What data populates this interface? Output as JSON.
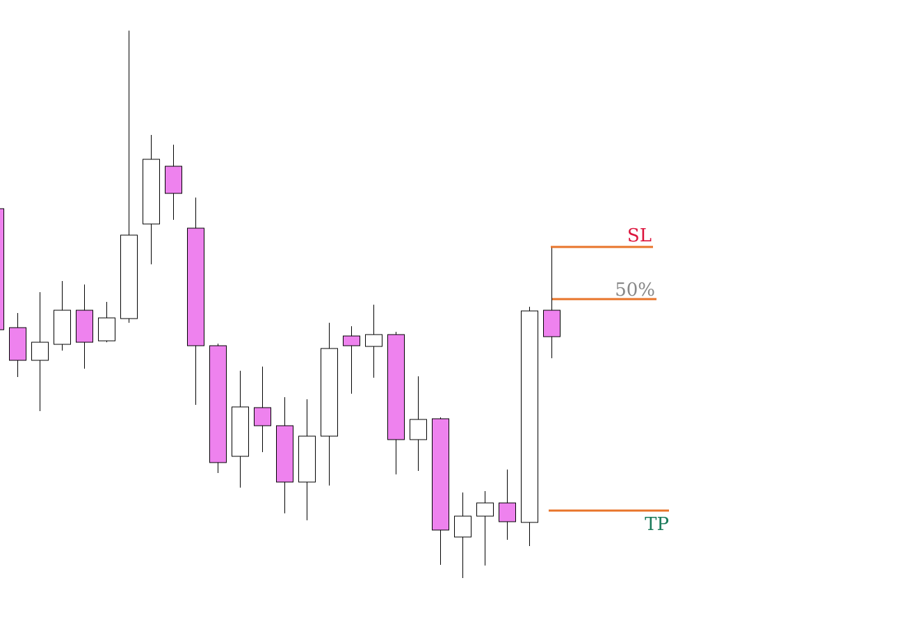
{
  "chart_data": {
    "type": "candlestick",
    "title": "",
    "xlabel": "",
    "ylabel": "",
    "grid": false,
    "ylim": [
      0,
      910
    ],
    "colors": {
      "bullish_body": "#ffffff",
      "bearish_body": "#ee82ee",
      "outline": "#000000",
      "level_line": "#e8742a",
      "sl_label": "#dc143c",
      "mid_label": "#888888",
      "tp_label": "#1a7a5a"
    },
    "candles": [
      {
        "open": 610,
        "high": 612,
        "low": 436,
        "close": 436
      },
      {
        "open": 439,
        "high": 460,
        "low": 368,
        "close": 392
      },
      {
        "open": 392,
        "high": 490,
        "low": 319,
        "close": 418
      },
      {
        "open": 415,
        "high": 506,
        "low": 406,
        "close": 464
      },
      {
        "open": 464,
        "high": 501,
        "low": 380,
        "close": 418
      },
      {
        "open": 420,
        "high": 476,
        "low": 418,
        "close": 453
      },
      {
        "open": 452,
        "high": 866,
        "low": 446,
        "close": 572
      },
      {
        "open": 588,
        "high": 716,
        "low": 530,
        "close": 681
      },
      {
        "open": 671,
        "high": 702,
        "low": 594,
        "close": 632
      },
      {
        "open": 582,
        "high": 626,
        "low": 328,
        "close": 413
      },
      {
        "open": 413,
        "high": 416,
        "low": 230,
        "close": 245
      },
      {
        "open": 254,
        "high": 377,
        "low": 209,
        "close": 325
      },
      {
        "open": 324,
        "high": 383,
        "low": 260,
        "close": 298
      },
      {
        "open": 298,
        "high": 339,
        "low": 172,
        "close": 217
      },
      {
        "open": 217,
        "high": 336,
        "low": 162,
        "close": 283
      },
      {
        "open": 283,
        "high": 446,
        "low": 212,
        "close": 409
      },
      {
        "open": 427,
        "high": 441,
        "low": 344,
        "close": 413
      },
      {
        "open": 412,
        "high": 472,
        "low": 367,
        "close": 429
      },
      {
        "open": 429,
        "high": 433,
        "low": 228,
        "close": 278
      },
      {
        "open": 278,
        "high": 369,
        "low": 233,
        "close": 307
      },
      {
        "open": 308,
        "high": 310,
        "low": 98,
        "close": 148
      },
      {
        "open": 138,
        "high": 202,
        "low": 79,
        "close": 168
      },
      {
        "open": 168,
        "high": 204,
        "low": 97,
        "close": 187
      },
      {
        "open": 187,
        "high": 235,
        "low": 134,
        "close": 160
      },
      {
        "open": 159,
        "high": 469,
        "low": 125,
        "close": 463
      },
      {
        "open": 464,
        "high": 555,
        "low": 395,
        "close": 426
      }
    ],
    "levels": [
      {
        "key": "sl",
        "label": "SL",
        "value": 555
      },
      {
        "key": "mid",
        "label": "50%",
        "value": 480
      },
      {
        "key": "tp",
        "label": "TP",
        "value": 176
      }
    ]
  }
}
